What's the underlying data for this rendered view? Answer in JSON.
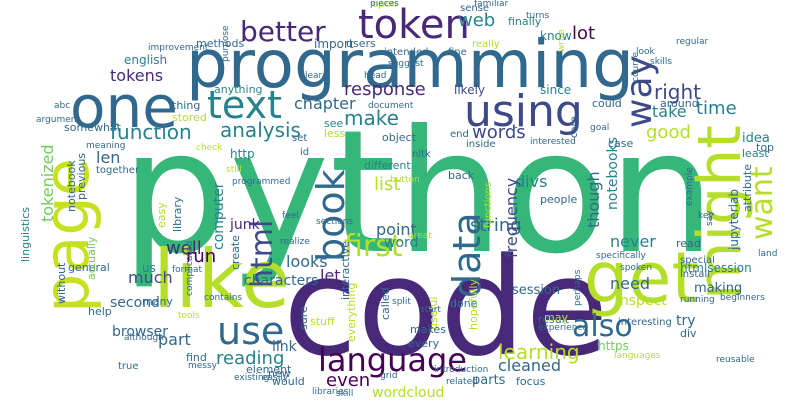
{
  "background": "#ffffff",
  "palette": [
    "#440154",
    "#482878",
    "#3e4989",
    "#31688e",
    "#26828e",
    "#1f9e89",
    "#35b779",
    "#6ece58",
    "#b5de2b",
    "#c7e020"
  ],
  "words": [
    {
      "text": "python"
    },
    {
      "text": "code"
    },
    {
      "text": "programming"
    },
    {
      "text": "one"
    },
    {
      "text": "like"
    },
    {
      "text": "get"
    },
    {
      "text": "page"
    },
    {
      "text": "might"
    },
    {
      "text": "token"
    },
    {
      "text": "using"
    },
    {
      "text": "text"
    },
    {
      "text": "book"
    },
    {
      "text": "data"
    },
    {
      "text": "language"
    },
    {
      "text": "use"
    },
    {
      "text": "html"
    },
    {
      "text": "first"
    },
    {
      "text": "better"
    },
    {
      "text": "way"
    },
    {
      "text": "also"
    },
    {
      "text": "want"
    },
    {
      "text": "response"
    },
    {
      "text": "tokens"
    },
    {
      "text": "analysis"
    },
    {
      "text": "function"
    },
    {
      "text": "make"
    },
    {
      "text": "words"
    },
    {
      "text": "chapter"
    },
    {
      "text": "learning"
    },
    {
      "text": "reading"
    },
    {
      "text": "string"
    },
    {
      "text": "list"
    },
    {
      "text": "well"
    },
    {
      "text": "even"
    },
    {
      "text": "cleaned"
    },
    {
      "text": "right"
    },
    {
      "text": "time"
    },
    {
      "text": "good"
    },
    {
      "text": "take"
    },
    {
      "text": "lot"
    },
    {
      "text": "web"
    },
    {
      "text": "run"
    },
    {
      "text": "divs"
    },
    {
      "text": "need"
    },
    {
      "text": "much"
    },
    {
      "text": "let"
    },
    {
      "text": "looks"
    },
    {
      "text": "point"
    },
    {
      "text": "never"
    },
    {
      "text": "len"
    },
    {
      "text": "tokenized"
    },
    {
      "text": "frequency"
    },
    {
      "text": "though"
    },
    {
      "text": "notebooks"
    },
    {
      "text": "wordcloud"
    },
    {
      "text": "part"
    },
    {
      "text": "word"
    },
    {
      "text": "computer"
    },
    {
      "text": "jupyterlab"
    },
    {
      "text": "characters"
    },
    {
      "text": "inspect"
    },
    {
      "text": "try"
    },
    {
      "text": "making"
    },
    {
      "text": "second"
    },
    {
      "text": "browser"
    },
    {
      "text": "parts"
    },
    {
      "text": "link"
    },
    {
      "text": "english"
    },
    {
      "text": "idea"
    },
    {
      "text": "junk"
    },
    {
      "text": "session"
    },
    {
      "text": "htmlsession"
    },
    {
      "text": "http"
    },
    {
      "text": "https"
    },
    {
      "text": "us"
    },
    {
      "text": "know"
    },
    {
      "text": "import"
    },
    {
      "text": "methods"
    },
    {
      "text": "finally"
    },
    {
      "text": "likely"
    },
    {
      "text": "since"
    },
    {
      "text": "could"
    },
    {
      "text": "anything"
    },
    {
      "text": "thing"
    },
    {
      "text": "stored"
    },
    {
      "text": "see"
    },
    {
      "text": "less"
    },
    {
      "text": "object"
    },
    {
      "text": "different"
    },
    {
      "text": "case"
    },
    {
      "text": "top"
    },
    {
      "text": "least"
    },
    {
      "text": "attribute"
    },
    {
      "text": "around"
    },
    {
      "text": "back"
    },
    {
      "text": "people"
    },
    {
      "text": "hopefully"
    },
    {
      "text": "useful"
    },
    {
      "text": "called"
    },
    {
      "text": "done"
    },
    {
      "text": "every"
    },
    {
      "text": "result"
    },
    {
      "text": "focus"
    },
    {
      "text": "div"
    },
    {
      "text": "element"
    },
    {
      "text": "new"
    },
    {
      "text": "would"
    },
    {
      "text": "find"
    },
    {
      "text": "create"
    },
    {
      "text": "easy"
    },
    {
      "text": "general"
    },
    {
      "text": "help"
    },
    {
      "text": "many"
    },
    {
      "text": "sure"
    },
    {
      "text": "stuff"
    },
    {
      "text": "everything"
    },
    {
      "text": "makes"
    },
    {
      "text": "may"
    },
    {
      "text": "read"
    },
    {
      "text": "previous"
    },
    {
      "text": "notebook"
    },
    {
      "text": "somewhat"
    },
    {
      "text": "linguistics"
    },
    {
      "text": "without"
    },
    {
      "text": "actually"
    },
    {
      "text": "together"
    },
    {
      "text": "library"
    },
    {
      "text": "interactive"
    },
    {
      "text": "users"
    },
    {
      "text": "intended"
    },
    {
      "text": "fine"
    },
    {
      "text": "really"
    },
    {
      "text": "open"
    },
    {
      "text": "sense"
    },
    {
      "text": "id"
    },
    {
      "text": "r"
    },
    {
      "text": "set"
    },
    {
      "text": "end"
    },
    {
      "text": "inside"
    },
    {
      "text": "care"
    },
    {
      "text": "nltk"
    },
    {
      "text": "true"
    },
    {
      "text": "interesting"
    },
    {
      "text": "special"
    },
    {
      "text": "install"
    },
    {
      "text": "functions"
    },
    {
      "text": "pieces"
    },
    {
      "text": "familiar"
    },
    {
      "text": "turns"
    },
    {
      "text": "write"
    },
    {
      "text": "suggest"
    },
    {
      "text": "clear"
    },
    {
      "text": "head"
    },
    {
      "text": "improvement"
    },
    {
      "text": "purpose"
    },
    {
      "text": "regular"
    },
    {
      "text": "look"
    },
    {
      "text": "skills"
    },
    {
      "text": "course"
    },
    {
      "text": "abc"
    },
    {
      "text": "argument"
    },
    {
      "text": "meaning"
    },
    {
      "text": "document"
    },
    {
      "text": "goal"
    },
    {
      "text": "interested"
    },
    {
      "text": "check"
    },
    {
      "text": "programmed"
    },
    {
      "text": "button"
    },
    {
      "text": "still"
    },
    {
      "text": "feel"
    },
    {
      "text": "realize"
    },
    {
      "text": "great"
    },
    {
      "text": "sections"
    },
    {
      "text": "complicated"
    },
    {
      "text": "format"
    },
    {
      "text": "contains"
    },
    {
      "text": "start"
    },
    {
      "text": "tools"
    },
    {
      "text": "split"
    },
    {
      "text": "grid"
    },
    {
      "text": "introduction"
    },
    {
      "text": "libraries"
    },
    {
      "text": "skill"
    },
    {
      "text": "easily"
    },
    {
      "text": "existing"
    },
    {
      "text": "messy"
    },
    {
      "text": "although"
    },
    {
      "text": "related"
    },
    {
      "text": "experience"
    },
    {
      "text": "running"
    },
    {
      "text": "reusable"
    },
    {
      "text": "beginners"
    },
    {
      "text": "key"
    },
    {
      "text": "say"
    },
    {
      "text": "land"
    },
    {
      "text": "example"
    },
    {
      "text": "perhaps"
    },
    {
      "text": "specifically"
    },
    {
      "text": "languages"
    },
    {
      "text": "spoken"
    },
    {
      "text": "among"
    }
  ]
}
